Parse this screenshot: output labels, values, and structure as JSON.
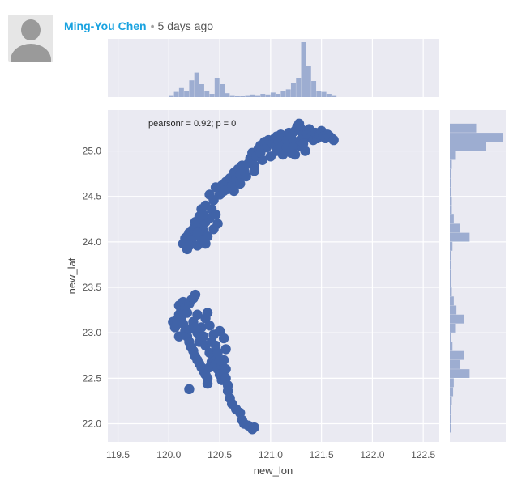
{
  "comment": {
    "author": "Ming-You Chen",
    "separator": "•",
    "time": "5 days ago"
  },
  "chart_data": {
    "type": "scatter",
    "annotation": "pearsonr = 0.92; p = 0",
    "xlabel": "new_lon",
    "ylabel": "new_lat",
    "xlim": [
      119.4,
      122.65
    ],
    "ylim": [
      21.8,
      25.45
    ],
    "xticks": [
      "119.5",
      "120.0",
      "120.5",
      "121.0",
      "121.5",
      "122.0",
      "122.5"
    ],
    "yticks": [
      "22.0",
      "22.5",
      "23.0",
      "23.5",
      "24.0",
      "24.5",
      "25.0"
    ],
    "grid": true,
    "marker_color": "#4063a8",
    "background_color": "#eaeaf2",
    "marginals": "histograms",
    "points": [
      [
        120.16,
        24.04
      ],
      [
        120.14,
        23.98
      ],
      [
        120.18,
        24.06
      ],
      [
        120.2,
        24.1
      ],
      [
        120.24,
        24.14
      ],
      [
        120.26,
        24.18
      ],
      [
        120.3,
        24.2
      ],
      [
        120.22,
        24.02
      ],
      [
        120.2,
        23.96
      ],
      [
        120.28,
        23.96
      ],
      [
        120.3,
        24.06
      ],
      [
        120.34,
        24.12
      ],
      [
        120.36,
        24.22
      ],
      [
        120.3,
        24.28
      ],
      [
        120.32,
        24.36
      ],
      [
        120.36,
        24.4
      ],
      [
        120.4,
        24.26
      ],
      [
        120.42,
        24.36
      ],
      [
        120.44,
        24.46
      ],
      [
        120.4,
        24.52
      ],
      [
        120.46,
        24.3
      ],
      [
        120.48,
        24.2
      ],
      [
        120.44,
        24.14
      ],
      [
        120.38,
        24.06
      ],
      [
        120.36,
        23.98
      ],
      [
        120.28,
        24.1
      ],
      [
        120.26,
        24.22
      ],
      [
        120.34,
        24.3
      ],
      [
        120.5,
        24.52
      ],
      [
        120.52,
        24.62
      ],
      [
        120.56,
        24.66
      ],
      [
        120.6,
        24.7
      ],
      [
        120.64,
        24.76
      ],
      [
        120.68,
        24.8
      ],
      [
        120.72,
        24.84
      ],
      [
        120.58,
        24.58
      ],
      [
        120.54,
        24.56
      ],
      [
        120.62,
        24.62
      ],
      [
        120.66,
        24.68
      ],
      [
        120.7,
        24.74
      ],
      [
        120.74,
        24.78
      ],
      [
        120.76,
        24.72
      ],
      [
        120.78,
        24.86
      ],
      [
        120.8,
        24.92
      ],
      [
        120.82,
        24.98
      ],
      [
        120.86,
        24.94
      ],
      [
        120.88,
        25.02
      ],
      [
        120.9,
        25.06
      ],
      [
        120.94,
        25.1
      ],
      [
        120.96,
        25.04
      ],
      [
        120.98,
        25.12
      ],
      [
        121.02,
        25.08
      ],
      [
        121.04,
        25.14
      ],
      [
        121.06,
        25.16
      ],
      [
        121.08,
        25.1
      ],
      [
        121.1,
        25.18
      ],
      [
        121.12,
        25.06
      ],
      [
        121.14,
        25.02
      ],
      [
        121.16,
        25.12
      ],
      [
        121.18,
        25.2
      ],
      [
        121.2,
        25.16
      ],
      [
        121.22,
        25.1
      ],
      [
        121.24,
        25.22
      ],
      [
        121.26,
        25.26
      ],
      [
        121.28,
        25.3
      ],
      [
        121.3,
        25.24
      ],
      [
        121.32,
        25.18
      ],
      [
        121.34,
        25.14
      ],
      [
        121.36,
        25.2
      ],
      [
        121.38,
        25.24
      ],
      [
        121.4,
        25.16
      ],
      [
        121.42,
        25.12
      ],
      [
        121.44,
        25.2
      ],
      [
        121.46,
        25.14
      ],
      [
        121.48,
        25.18
      ],
      [
        121.5,
        25.22
      ],
      [
        121.52,
        25.16
      ],
      [
        121.54,
        25.14
      ],
      [
        121.56,
        25.18
      ],
      [
        121.58,
        25.16
      ],
      [
        121.6,
        25.14
      ],
      [
        121.62,
        25.12
      ],
      [
        121.28,
        25.06
      ],
      [
        121.2,
        24.98
      ],
      [
        121.12,
        24.96
      ],
      [
        121.0,
        24.94
      ],
      [
        120.92,
        24.9
      ],
      [
        120.84,
        24.84
      ],
      [
        120.9,
        24.98
      ],
      [
        121.06,
        25.0
      ],
      [
        121.16,
        25.04
      ],
      [
        121.26,
        25.1
      ],
      [
        121.3,
        25.12
      ],
      [
        121.22,
        25.04
      ],
      [
        121.32,
        25.08
      ],
      [
        121.34,
        25.0
      ],
      [
        121.24,
        24.96
      ],
      [
        120.84,
        24.78
      ],
      [
        120.7,
        24.64
      ],
      [
        120.64,
        24.56
      ],
      [
        120.46,
        24.6
      ],
      [
        120.34,
        24.02
      ],
      [
        120.18,
        23.92
      ],
      [
        120.04,
        23.12
      ],
      [
        120.06,
        23.06
      ],
      [
        120.08,
        23.14
      ],
      [
        120.1,
        23.2
      ],
      [
        120.1,
        23.3
      ],
      [
        120.12,
        23.24
      ],
      [
        120.14,
        23.34
      ],
      [
        120.16,
        23.28
      ],
      [
        120.18,
        23.22
      ],
      [
        120.2,
        23.32
      ],
      [
        120.22,
        23.36
      ],
      [
        120.24,
        23.38
      ],
      [
        120.26,
        23.42
      ],
      [
        120.12,
        23.16
      ],
      [
        120.14,
        23.1
      ],
      [
        120.16,
        23.02
      ],
      [
        120.18,
        22.96
      ],
      [
        120.2,
        22.9
      ],
      [
        120.22,
        22.84
      ],
      [
        120.24,
        22.8
      ],
      [
        120.26,
        22.74
      ],
      [
        120.28,
        22.7
      ],
      [
        120.3,
        22.66
      ],
      [
        120.32,
        22.62
      ],
      [
        120.34,
        22.58
      ],
      [
        120.36,
        22.54
      ],
      [
        120.38,
        22.5
      ],
      [
        120.38,
        22.44
      ],
      [
        120.4,
        22.62
      ],
      [
        120.42,
        22.68
      ],
      [
        120.44,
        22.72
      ],
      [
        120.46,
        22.66
      ],
      [
        120.48,
        22.6
      ],
      [
        120.5,
        22.54
      ],
      [
        120.52,
        22.48
      ],
      [
        120.52,
        22.64
      ],
      [
        120.54,
        22.7
      ],
      [
        120.56,
        22.6
      ],
      [
        120.56,
        22.5
      ],
      [
        120.58,
        22.42
      ],
      [
        120.58,
        22.36
      ],
      [
        120.6,
        22.28
      ],
      [
        120.62,
        22.22
      ],
      [
        120.66,
        22.16
      ],
      [
        120.7,
        22.12
      ],
      [
        120.72,
        22.04
      ],
      [
        120.74,
        22.0
      ],
      [
        120.78,
        21.98
      ],
      [
        120.82,
        21.94
      ],
      [
        120.84,
        21.96
      ],
      [
        120.3,
        22.9
      ],
      [
        120.28,
        23.0
      ],
      [
        120.32,
        23.06
      ],
      [
        120.34,
        22.96
      ],
      [
        120.36,
        22.86
      ],
      [
        120.4,
        22.78
      ],
      [
        120.42,
        22.9
      ],
      [
        120.44,
        22.98
      ],
      [
        120.46,
        22.86
      ],
      [
        120.48,
        22.78
      ],
      [
        120.5,
        22.7
      ],
      [
        120.24,
        23.12
      ],
      [
        120.28,
        23.2
      ],
      [
        120.26,
        23.06
      ],
      [
        120.36,
        23.16
      ],
      [
        120.38,
        23.22
      ],
      [
        120.4,
        23.08
      ],
      [
        120.5,
        23.02
      ],
      [
        120.54,
        22.94
      ],
      [
        120.56,
        22.82
      ],
      [
        120.2,
        22.38
      ],
      [
        120.1,
        22.96
      ],
      [
        120.2,
        23.04
      ]
    ],
    "hist_x": {
      "bins": [
        120.0,
        120.05,
        120.1,
        120.15,
        120.2,
        120.25,
        120.3,
        120.35,
        120.4,
        120.45,
        120.5,
        120.55,
        120.6,
        120.65,
        120.7,
        120.75,
        120.8,
        120.85,
        120.9,
        120.95,
        121.0,
        121.05,
        121.1,
        121.15,
        121.2,
        121.25,
        121.3,
        121.35,
        121.4,
        121.45,
        121.5,
        121.55,
        121.6,
        121.65
      ],
      "counts": [
        3,
        8,
        14,
        10,
        26,
        38,
        20,
        10,
        5,
        30,
        20,
        6,
        3,
        2,
        2,
        3,
        4,
        3,
        5,
        4,
        7,
        5,
        10,
        12,
        22,
        30,
        85,
        48,
        25,
        10,
        8,
        5,
        3
      ]
    },
    "hist_y": {
      "bins": [
        21.9,
        22.0,
        22.1,
        22.2,
        22.3,
        22.4,
        22.5,
        22.6,
        22.7,
        22.8,
        22.9,
        23.0,
        23.1,
        23.2,
        23.3,
        23.4,
        23.5,
        23.6,
        23.7,
        23.8,
        23.9,
        24.0,
        24.1,
        24.2,
        24.3,
        24.4,
        24.5,
        24.6,
        24.7,
        24.8,
        24.9,
        25.0,
        25.1,
        25.2,
        25.3
      ],
      "counts": [
        2,
        2,
        2,
        3,
        5,
        6,
        30,
        16,
        22,
        4,
        2,
        8,
        22,
        10,
        6,
        3,
        2,
        2,
        2,
        2,
        4,
        30,
        16,
        6,
        3,
        3,
        2,
        2,
        2,
        3,
        8,
        55,
        80,
        40,
        18
      ]
    }
  }
}
